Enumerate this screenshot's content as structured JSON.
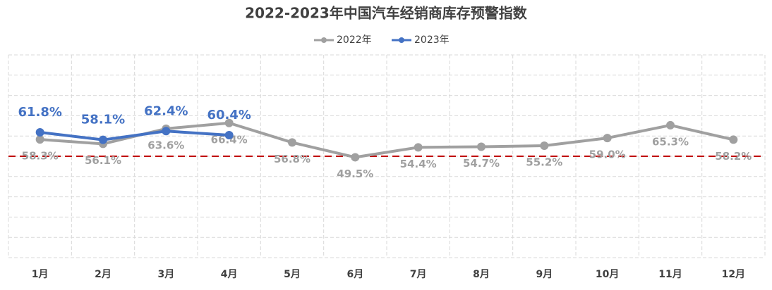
{
  "chart_data": {
    "type": "line",
    "title": "2022-2023年中国汽车经销商库存预警指数",
    "categories": [
      "1月",
      "2月",
      "3月",
      "4月",
      "5月",
      "6月",
      "7月",
      "8月",
      "9月",
      "10月",
      "11月",
      "12月"
    ],
    "series": [
      {
        "name": "2022年",
        "color": "#a0a0a0",
        "values": [
          58.3,
          56.1,
          63.6,
          66.4,
          56.8,
          49.5,
          54.4,
          54.7,
          55.2,
          59.0,
          65.3,
          58.2
        ],
        "value_labels": [
          "58.3%",
          "56.1%",
          "63.6%",
          "66.4%",
          "56.8%",
          "49.5%",
          "54.4%",
          "54.7%",
          "55.2%",
          "59.0%",
          "65.3%",
          "58.2%"
        ]
      },
      {
        "name": "2023年",
        "color": "#4472c4",
        "values": [
          61.8,
          58.1,
          62.4,
          60.4,
          null,
          null,
          null,
          null,
          null,
          null,
          null,
          null
        ],
        "value_labels": [
          "61.8%",
          "58.1%",
          "62.4%",
          "60.4%",
          null,
          null,
          null,
          null,
          null,
          null,
          null,
          null
        ]
      }
    ],
    "ylim": [
      0,
      100
    ],
    "yticks": [
      0,
      10,
      20,
      30,
      40,
      50,
      60,
      70,
      80,
      90,
      100
    ],
    "grid": true,
    "legend": "top",
    "reference_line": {
      "value": 50,
      "color": "#c00000"
    }
  }
}
